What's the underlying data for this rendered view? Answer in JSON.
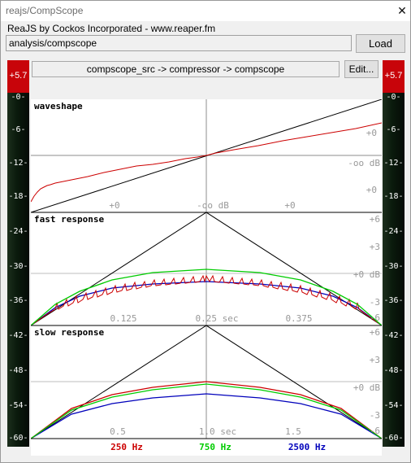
{
  "window": {
    "title": "reajs/CompScope",
    "close_glyph": "✕"
  },
  "header": {
    "subtitle": "ReaJS by Cockos Incorporated - www.reaper.fm"
  },
  "path": {
    "value": "analysis/compscope"
  },
  "buttons": {
    "load": "Load",
    "edit": "Edit..."
  },
  "chain": {
    "text": "compscope_src -> compressor -> compscope"
  },
  "meters": {
    "peak": "+5.7",
    "labels": [
      "-0-",
      "-6-",
      "-12-",
      "-18-",
      "-24-",
      "-30-",
      "-36-",
      "-42-",
      "-48-",
      "-54-",
      "-60-"
    ]
  },
  "panels": {
    "waveshape": {
      "title": "waveshape",
      "right_labels": [
        "+0",
        "-oo dB",
        "+0"
      ],
      "bottom_labels": [
        "+0",
        "-oo dB",
        "+0"
      ]
    },
    "fast": {
      "title": "fast response",
      "right_labels": [
        "+6",
        "+3",
        "+0 dB",
        "-3",
        "-6"
      ],
      "bottom_labels": [
        "0.125",
        "0.25 sec",
        "0.375"
      ]
    },
    "slow": {
      "title": "slow response",
      "right_labels": [
        "+6",
        "+3",
        "+0 dB",
        "-3",
        "-6"
      ],
      "bottom_labels": [
        "0.5",
        "1.0 sec",
        "1.5"
      ]
    }
  },
  "legend": [
    {
      "label": "250 Hz",
      "color": "#cc0000"
    },
    {
      "label": "750 Hz",
      "color": "#00cc00"
    },
    {
      "label": "2500 Hz",
      "color": "#0000bb"
    }
  ]
}
